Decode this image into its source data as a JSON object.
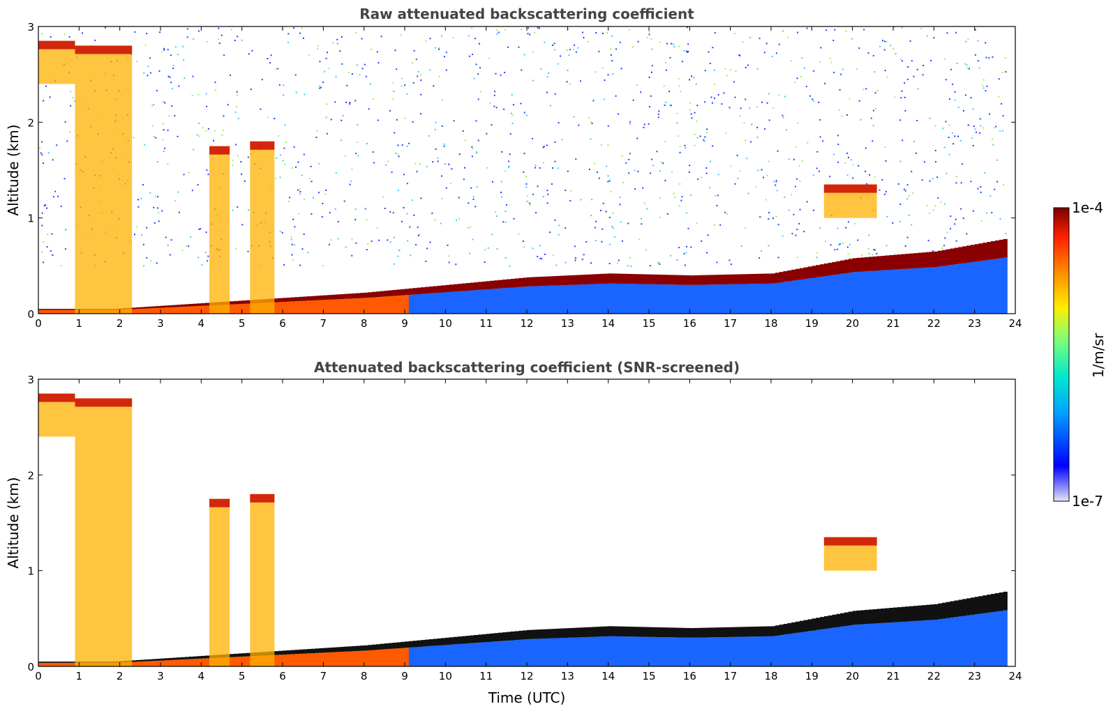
{
  "chart_data": [
    {
      "type": "heatmap",
      "title": "Raw attenuated backscattering coefficient",
      "xlabel": "",
      "ylabel": "Altitude (km)",
      "xlim": [
        0,
        24
      ],
      "ylim": [
        0,
        3
      ],
      "x_ticks": [
        "0",
        "1",
        "2",
        "3",
        "4",
        "5",
        "6",
        "7",
        "8",
        "9",
        "10",
        "11",
        "12",
        "13",
        "14",
        "15",
        "16",
        "17",
        "18",
        "19",
        "20",
        "21",
        "22",
        "23",
        "24"
      ],
      "y_ticks": [
        "0",
        "1",
        "2",
        "3"
      ],
      "screened": false,
      "boundary_layer_top_km": [
        {
          "t": 0,
          "h": 0.0
        },
        {
          "t": 8,
          "h": 0.22
        },
        {
          "t": 10,
          "h": 0.3
        },
        {
          "t": 12,
          "h": 0.38
        },
        {
          "t": 14,
          "h": 0.42
        },
        {
          "t": 16,
          "h": 0.4
        },
        {
          "t": 18,
          "h": 0.42
        },
        {
          "t": 19,
          "h": 0.5
        },
        {
          "t": 20,
          "h": 0.58
        },
        {
          "t": 22,
          "h": 0.65
        },
        {
          "t": 23.7,
          "h": 0.78
        }
      ],
      "plumes": [
        {
          "t_start": 0.0,
          "t_end": 0.9,
          "h_top": 2.85,
          "h_bottom": 2.4
        },
        {
          "t_start": 0.9,
          "t_end": 2.3,
          "h_top": 2.8,
          "h_bottom": 0.0
        },
        {
          "t_start": 4.2,
          "t_end": 4.7,
          "h_top": 1.75,
          "h_bottom": 0.0
        },
        {
          "t_start": 5.2,
          "t_end": 5.8,
          "h_top": 1.8,
          "h_bottom": 0.0
        },
        {
          "t_start": 19.3,
          "t_end": 20.6,
          "h_top": 1.35,
          "h_bottom": 1.0
        }
      ]
    },
    {
      "type": "heatmap",
      "title": "Attenuated backscattering coefficient (SNR-screened)",
      "xlabel": "Time (UTC)",
      "ylabel": "Altitude (km)",
      "xlim": [
        0,
        24
      ],
      "ylim": [
        0,
        3
      ],
      "x_ticks": [
        "0",
        "1",
        "2",
        "3",
        "4",
        "5",
        "6",
        "7",
        "8",
        "9",
        "10",
        "11",
        "12",
        "13",
        "14",
        "15",
        "16",
        "17",
        "18",
        "19",
        "20",
        "21",
        "22",
        "23",
        "24"
      ],
      "y_ticks": [
        "0",
        "1",
        "2",
        "3"
      ],
      "screened": true
    }
  ],
  "colorbar": {
    "label": "1/m/sr",
    "max_label": "1e-4",
    "min_label": "1e-7",
    "scale": "log",
    "range": [
      1e-07,
      0.0001
    ],
    "colors": [
      "#e6e6f5",
      "#0000ff",
      "#00a0ff",
      "#00e6d0",
      "#7dff7a",
      "#ffee00",
      "#ff8c00",
      "#ff2000",
      "#7a0000"
    ]
  }
}
